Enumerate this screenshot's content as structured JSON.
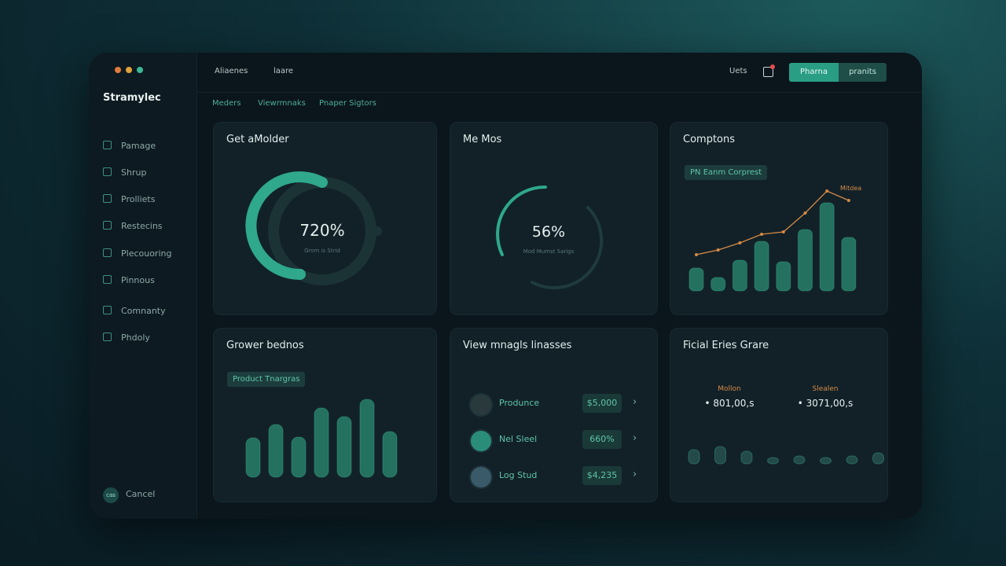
{
  "window": {
    "brand": "Stramylec",
    "sidebar": [
      "Pamage",
      "Shrup",
      "Prolliets",
      "Restecins",
      "Plecouoring",
      "Pinnous",
      "Comnanty",
      "Phdoly"
    ],
    "footer_badge": "cas",
    "footer": "Cancel"
  },
  "topbar": {
    "links": [
      "Aliaenes",
      "laare"
    ],
    "user": "Uets",
    "buttons": [
      "Pharna",
      "pranits"
    ]
  },
  "subnav": [
    "Meders",
    "Viewrmnaks",
    "Pnaper Sigtors"
  ],
  "cards": [
    {
      "title": "Get aMolder",
      "gauge": {
        "label": "720%",
        "caption": "Grom is Strid"
      }
    },
    {
      "title": "Me Mos",
      "gauge": {
        "label": "56%",
        "caption": "Mod Mumst Sarigs"
      }
    },
    {
      "title": "Comptons",
      "badge": "PN Eanm Corprest",
      "line_label": "Mitdea",
      "bars": [
        29,
        17,
        39,
        63,
        37,
        78,
        112,
        68
      ],
      "line": [
        46,
        52,
        61,
        72,
        75,
        99,
        127,
        115
      ]
    },
    {
      "title": "Grower bednos",
      "badge": "Product Tnargras",
      "bars": [
        50,
        67,
        51,
        88,
        77,
        99,
        58
      ]
    },
    {
      "title": "View mnagls linasses",
      "rows": [
        {
          "name": "Produnce",
          "value": "$5,000"
        },
        {
          "name": "Nel Sleel",
          "value": "660%"
        },
        {
          "name": "Log Stud",
          "value": "$4,235"
        }
      ]
    },
    {
      "title": "Ficial Eries Grare",
      "stats": [
        {
          "label": "Mollon",
          "value": "• 801,00,s"
        },
        {
          "label": "Slealen",
          "value": "• 3071,00,s"
        }
      ],
      "bars": [
        18,
        22,
        16,
        8,
        10,
        8,
        10,
        14
      ]
    }
  ]
}
